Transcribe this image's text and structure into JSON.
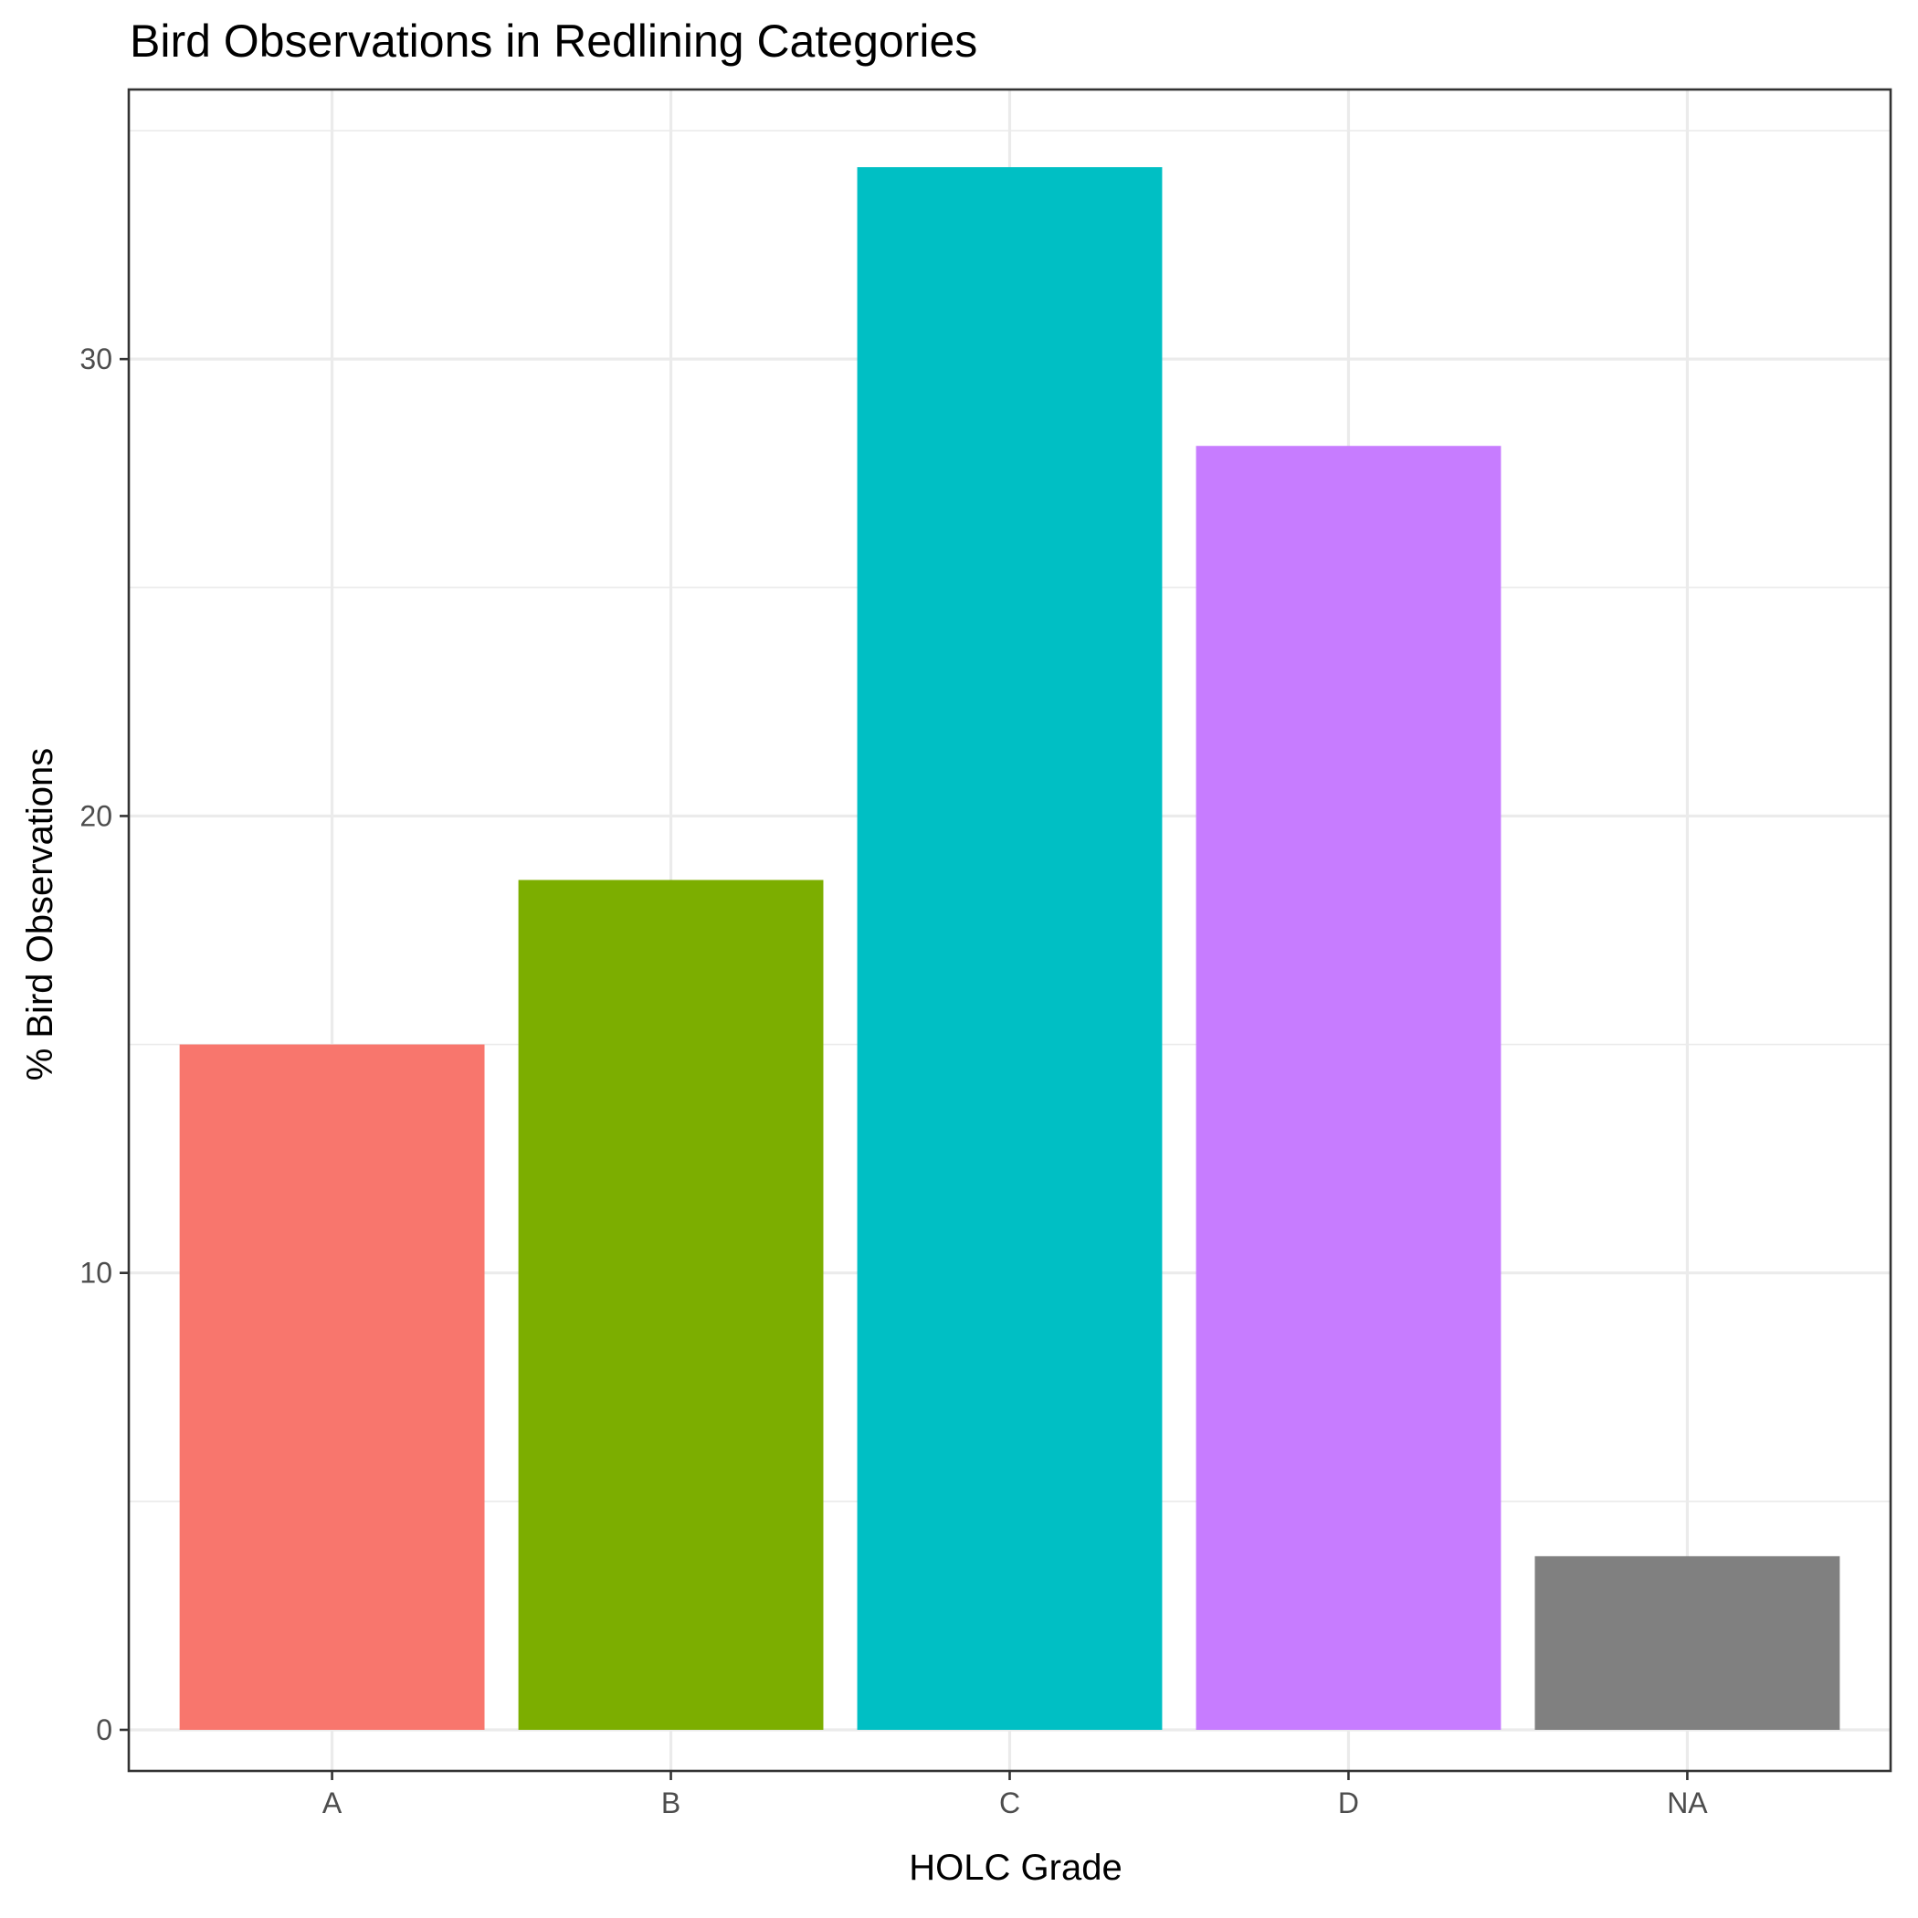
{
  "chart_data": {
    "type": "bar",
    "title": "Bird Observations in Redlining Categories",
    "xlabel": "HOLC Grade",
    "ylabel": "% Bird Observations",
    "categories": [
      "A",
      "B",
      "C",
      "D",
      "NA"
    ],
    "values": [
      15.0,
      18.6,
      34.2,
      28.1,
      3.8
    ],
    "colors": [
      "#F8766D",
      "#7CAE00",
      "#00BFC4",
      "#C77CFF",
      "#808080"
    ],
    "yticks": [
      0,
      10,
      20,
      30
    ],
    "ylim": [
      -0.9,
      35.9
    ],
    "grid": true,
    "legend": "none"
  }
}
